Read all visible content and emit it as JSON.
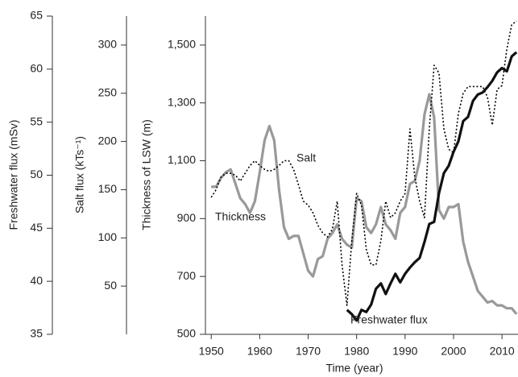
{
  "chart_data": {
    "type": "line",
    "x": [
      1950,
      1951,
      1952,
      1953,
      1954,
      1955,
      1956,
      1957,
      1958,
      1959,
      1960,
      1961,
      1962,
      1963,
      1964,
      1965,
      1966,
      1967,
      1968,
      1969,
      1970,
      1971,
      1972,
      1973,
      1974,
      1975,
      1976,
      1977,
      1978,
      1979,
      1980,
      1981,
      1982,
      1983,
      1984,
      1985,
      1986,
      1987,
      1988,
      1989,
      1990,
      1991,
      1992,
      1993,
      1994,
      1995,
      1996,
      1997,
      1998,
      1999,
      2000,
      2001,
      2002,
      2003,
      2004,
      2005,
      2006,
      2007,
      2008,
      2009,
      2010,
      2011,
      2012,
      2013
    ],
    "xlim": [
      1948.8,
      2013.3
    ],
    "xticks": [
      1950,
      1960,
      1970,
      1980,
      1990,
      2000,
      2010
    ],
    "xlabel": "Time (year)",
    "ylim": [
      500,
      1600
    ],
    "yticks": [
      500,
      700,
      900,
      {
        "value": 1100,
        "label": "1,100"
      },
      {
        "value": 1300,
        "label": "1,300"
      },
      {
        "value": 1500,
        "label": "1,500"
      }
    ],
    "ylabel": "Thickness of LSW (m)",
    "y2lim": [
      0,
      330
    ],
    "y2ticks": [
      50,
      100,
      150,
      200,
      250,
      300
    ],
    "y2label": "Salt flux (kTs⁻¹)",
    "y3lim": [
      35,
      65
    ],
    "y3ticks": [
      35,
      40,
      45,
      50,
      55,
      60,
      65
    ],
    "y3label": "Freshwater flux (mSv)",
    "series": [
      {
        "name": "Thickness",
        "color": "#999999",
        "axis": "y",
        "values": [
          1010,
          1010,
          1040,
          1060,
          1070,
          1020,
          970,
          950,
          920,
          960,
          1060,
          1170,
          1220,
          1170,
          1000,
          870,
          830,
          840,
          840,
          780,
          720,
          700,
          760,
          770,
          830,
          850,
          880,
          830,
          810,
          800,
          970,
          960,
          870,
          850,
          880,
          940,
          880,
          860,
          830,
          920,
          940,
          1020,
          1030,
          1100,
          1260,
          1330,
          1250,
          930,
          900,
          940,
          940,
          950,
          820,
          750,
          700,
          650,
          630,
          610,
          615,
          600,
          600,
          590,
          590,
          570
        ]
      },
      {
        "name": "Salt",
        "color": "#000000",
        "axis": "y2",
        "values": [
          142,
          150,
          163,
          167,
          167,
          165,
          159,
          167,
          175,
          180,
          175,
          171,
          169,
          171,
          175,
          180,
          180,
          171,
          155,
          138,
          134,
          126,
          113,
          105,
          101,
          109,
          138,
          72,
          30,
          97,
          146,
          134,
          88,
          72,
          72,
          97,
          138,
          121,
          126,
          138,
          146,
          213,
          163,
          138,
          121,
          213,
          279,
          271,
          213,
          192,
          188,
          229,
          250,
          257,
          257,
          257,
          257,
          246,
          217,
          254,
          258,
          296,
          321,
          325
        ]
      },
      {
        "name": "Freshwater flux",
        "color": "#111111",
        "axis": "y3",
        "values": [
          null,
          null,
          null,
          null,
          null,
          null,
          null,
          null,
          null,
          null,
          null,
          null,
          null,
          null,
          null,
          null,
          null,
          null,
          null,
          null,
          null,
          null,
          null,
          null,
          null,
          null,
          null,
          null,
          37.3,
          36.9,
          36.3,
          37.3,
          37.1,
          37.8,
          39.3,
          39.8,
          38.8,
          39.8,
          40.7,
          39.9,
          40.7,
          41.3,
          41.8,
          42.2,
          43.7,
          45.4,
          45.6,
          48.3,
          50.2,
          50.9,
          52.2,
          53.2,
          55.1,
          55.5,
          57.0,
          57.6,
          57.8,
          58.3,
          58.9,
          59.7,
          60.1,
          59.8,
          61.2,
          61.6
        ]
      }
    ]
  }
}
